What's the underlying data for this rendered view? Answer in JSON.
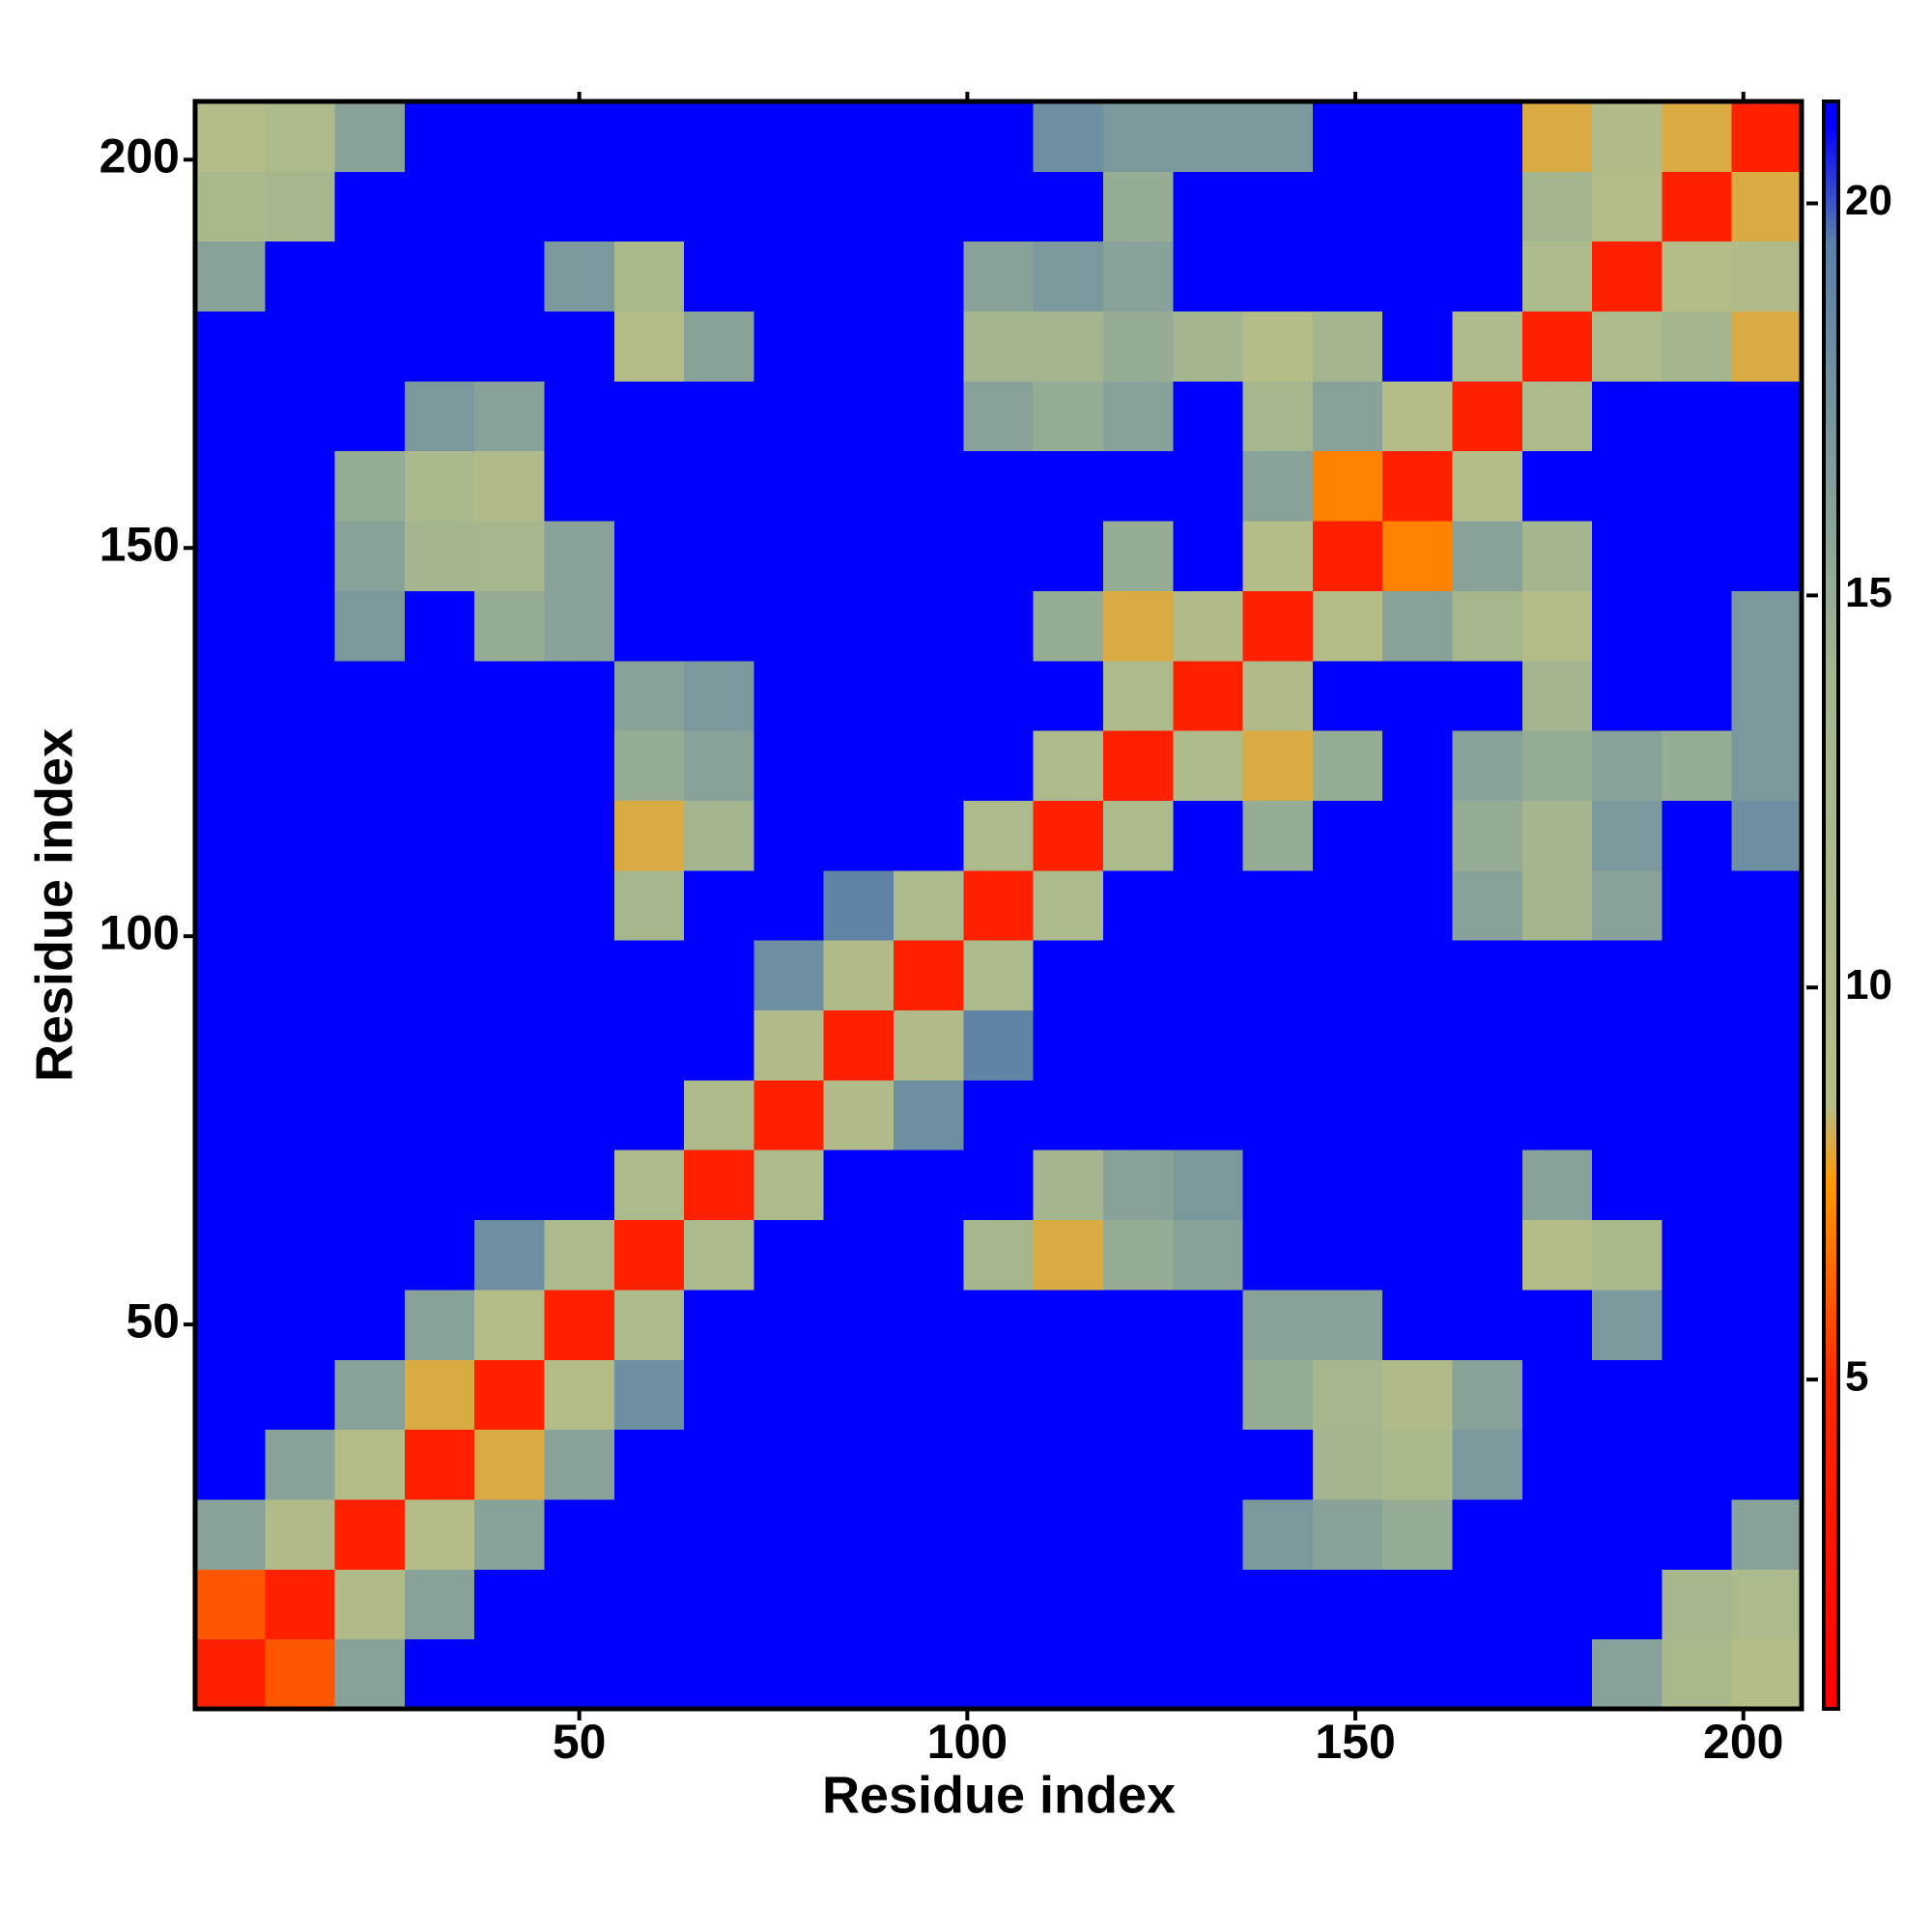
{
  "chart_data": {
    "type": "heatmap",
    "x_label": "Residue index",
    "y_label": "Residue index",
    "x_edges": [
      0.5,
      9.5,
      18.5,
      27.5,
      36.5,
      45.5,
      54.5,
      63.5,
      72.5,
      81.5,
      90.5,
      99.5,
      108.5,
      117.5,
      126.5,
      135.5,
      144.5,
      153.5,
      162.5,
      171.5,
      180.5,
      189.5,
      198.5,
      207.5
    ],
    "y_edges": [
      0.5,
      9.5,
      18.5,
      27.5,
      36.5,
      45.5,
      54.5,
      63.5,
      72.5,
      81.5,
      90.5,
      99.5,
      108.5,
      117.5,
      126.5,
      135.5,
      144.5,
      153.5,
      162.5,
      171.5,
      180.5,
      189.5,
      198.5,
      207.5
    ],
    "z": [
      [
        4,
        6,
        16,
        21,
        21,
        21,
        21,
        21,
        21,
        21,
        21,
        21,
        21,
        21,
        21,
        21,
        21,
        21,
        21,
        21,
        16,
        12,
        9
      ],
      [
        6,
        4,
        10,
        16,
        21,
        21,
        21,
        21,
        21,
        21,
        21,
        21,
        21,
        21,
        21,
        21,
        21,
        21,
        21,
        21,
        21,
        13,
        11
      ],
      [
        16,
        10,
        4,
        9,
        16,
        21,
        21,
        21,
        21,
        21,
        21,
        21,
        21,
        21,
        21,
        17,
        16,
        15,
        21,
        21,
        21,
        21,
        16
      ],
      [
        21,
        16,
        9,
        4,
        8,
        16,
        21,
        21,
        21,
        21,
        21,
        21,
        21,
        21,
        21,
        21,
        14,
        12,
        17,
        21,
        21,
        21,
        21
      ],
      [
        21,
        21,
        16,
        8,
        4,
        9,
        18,
        21,
        21,
        21,
        21,
        21,
        21,
        21,
        21,
        15,
        13,
        10,
        16,
        21,
        21,
        21,
        21
      ],
      [
        21,
        21,
        21,
        16,
        9,
        4,
        11,
        21,
        21,
        21,
        21,
        21,
        21,
        21,
        21,
        16,
        16,
        21,
        21,
        21,
        17,
        21,
        21
      ],
      [
        21,
        21,
        21,
        21,
        18,
        11,
        4,
        11,
        21,
        21,
        21,
        13,
        8,
        15,
        16,
        21,
        21,
        21,
        21,
        9,
        12,
        21,
        21
      ],
      [
        21,
        21,
        21,
        21,
        21,
        21,
        11,
        4,
        11,
        21,
        21,
        21,
        14,
        16,
        17,
        21,
        21,
        21,
        21,
        16,
        21,
        21,
        21
      ],
      [
        21,
        21,
        21,
        21,
        21,
        21,
        21,
        11,
        4,
        10,
        18,
        21,
        21,
        21,
        21,
        21,
        21,
        21,
        21,
        21,
        21,
        21,
        21
      ],
      [
        21,
        21,
        21,
        21,
        21,
        21,
        21,
        21,
        10,
        4,
        10,
        19,
        21,
        21,
        21,
        21,
        21,
        21,
        21,
        21,
        21,
        21,
        21
      ],
      [
        21,
        21,
        21,
        21,
        21,
        21,
        21,
        21,
        18,
        10,
        4,
        11,
        21,
        21,
        21,
        21,
        21,
        21,
        21,
        21,
        21,
        21,
        21
      ],
      [
        21,
        21,
        21,
        21,
        21,
        21,
        13,
        21,
        21,
        19,
        11,
        4,
        11,
        21,
        21,
        21,
        21,
        21,
        16,
        14,
        16,
        21,
        21
      ],
      [
        21,
        21,
        21,
        21,
        21,
        21,
        8,
        14,
        21,
        21,
        21,
        11,
        4,
        11,
        21,
        15,
        21,
        21,
        15,
        14,
        17,
        21,
        18
      ],
      [
        21,
        21,
        21,
        21,
        21,
        21,
        15,
        16,
        21,
        21,
        21,
        21,
        11,
        4,
        11,
        8,
        15,
        21,
        16,
        15,
        16,
        15,
        17
      ],
      [
        21,
        21,
        21,
        21,
        21,
        21,
        16,
        17,
        21,
        21,
        21,
        21,
        21,
        11,
        4,
        10,
        21,
        21,
        21,
        14,
        21,
        21,
        17
      ],
      [
        21,
        21,
        17,
        21,
        15,
        16,
        21,
        21,
        21,
        21,
        21,
        21,
        15,
        8,
        10,
        4,
        9,
        16,
        13,
        9,
        21,
        21,
        17
      ],
      [
        21,
        21,
        16,
        14,
        13,
        16,
        21,
        21,
        21,
        21,
        21,
        21,
        21,
        15,
        21,
        9,
        4,
        7,
        16,
        14,
        21,
        21,
        21
      ],
      [
        21,
        21,
        15,
        12,
        10,
        21,
        21,
        21,
        21,
        21,
        21,
        21,
        21,
        21,
        21,
        16,
        7,
        4,
        9,
        21,
        21,
        21,
        21
      ],
      [
        21,
        21,
        21,
        17,
        16,
        21,
        21,
        21,
        21,
        21,
        21,
        16,
        15,
        16,
        21,
        13,
        16,
        9,
        4,
        11,
        21,
        21,
        21
      ],
      [
        21,
        21,
        21,
        21,
        21,
        21,
        9,
        16,
        21,
        21,
        21,
        14,
        14,
        15,
        14,
        9,
        14,
        21,
        11,
        4,
        11,
        14,
        8
      ],
      [
        16,
        21,
        21,
        21,
        21,
        17,
        12,
        21,
        21,
        21,
        21,
        16,
        17,
        16,
        21,
        21,
        21,
        21,
        21,
        11,
        4,
        9,
        10
      ],
      [
        12,
        13,
        21,
        21,
        21,
        21,
        21,
        21,
        21,
        21,
        21,
        21,
        21,
        15,
        21,
        21,
        21,
        21,
        21,
        14,
        9,
        4,
        8
      ],
      [
        9,
        11,
        16,
        21,
        21,
        21,
        21,
        21,
        21,
        21,
        21,
        21,
        18,
        17,
        17,
        17,
        21,
        21,
        21,
        8,
        10,
        8,
        4
      ]
    ],
    "xlim": [
      0.5,
      207.5
    ],
    "ylim": [
      0.5,
      207.5
    ],
    "xticks": [
      50,
      100,
      150,
      200
    ],
    "yticks": [
      50,
      100,
      150,
      200
    ],
    "colorbar": {
      "lim": [
        0.8,
        21.3
      ],
      "ticks": [
        5,
        10,
        15,
        20
      ]
    },
    "colorscale": [
      [
        0.8,
        "#ff0000"
      ],
      [
        5,
        "#ff2a00"
      ],
      [
        7.5,
        "#ff9900"
      ],
      [
        8.5,
        "#b6bd86"
      ],
      [
        14,
        "#a3b690"
      ],
      [
        19.5,
        "#5a7fa8"
      ],
      [
        21,
        "#0000ff"
      ]
    ]
  }
}
